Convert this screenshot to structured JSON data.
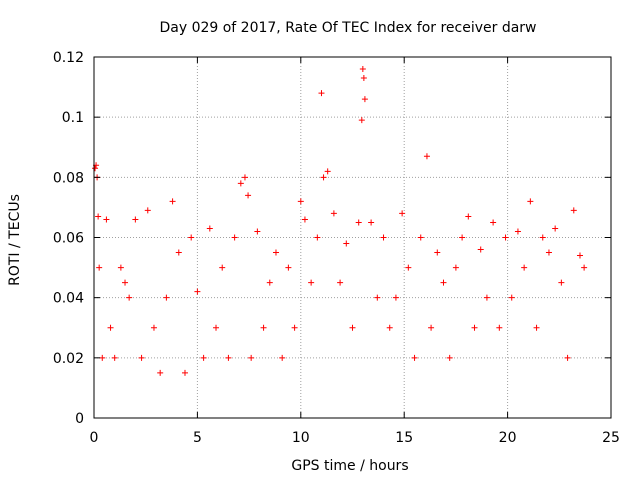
{
  "chart_data": {
    "type": "scatter",
    "title": "Day 029 of 2017, Rate Of TEC Index for receiver darw",
    "xlabel": "GPS time / hours",
    "ylabel": "ROTI / TECUs",
    "xlim": [
      0,
      25
    ],
    "ylim": [
      0,
      0.12
    ],
    "xticks": [
      0,
      5,
      10,
      15,
      20,
      25
    ],
    "xtick_labels": [
      "0",
      "5",
      "10",
      "15",
      "20",
      "25"
    ],
    "yticks": [
      0,
      0.02,
      0.04,
      0.06,
      0.08,
      0.1,
      0.12
    ],
    "ytick_labels": [
      "0",
      "0.02",
      "0.04",
      "0.06",
      "0.08",
      "0.1",
      "0.12"
    ],
    "grid": true,
    "legend": "none",
    "marker": "plus",
    "color": "#ff0000",
    "series": [
      {
        "x": [
          0.05,
          0.1,
          0.15,
          0.2,
          0.25,
          0.4,
          0.6,
          0.8,
          1.0,
          1.3,
          1.5,
          1.7,
          2.0,
          2.3,
          2.6,
          2.9,
          3.2,
          3.5,
          3.8,
          4.1,
          4.4,
          4.7,
          5.0,
          5.3,
          5.6,
          5.9,
          6.2,
          6.5,
          6.8,
          7.1,
          7.3,
          7.45,
          7.6,
          7.9,
          8.2,
          8.5,
          8.8,
          9.1,
          9.4,
          9.7,
          10.0,
          10.2,
          10.5,
          10.8,
          11.0,
          11.1,
          11.3,
          11.6,
          11.9,
          12.2,
          12.5,
          12.8,
          12.95,
          13.0,
          13.05,
          13.1,
          13.4,
          13.7,
          14.0,
          14.3,
          14.6,
          14.9,
          15.2,
          15.5,
          15.8,
          16.1,
          16.3,
          16.6,
          16.9,
          17.2,
          17.5,
          17.8,
          18.1,
          18.4,
          18.7,
          19.0,
          19.3,
          19.6,
          19.9,
          20.2,
          20.5,
          20.8,
          21.1,
          21.4,
          21.7,
          22.0,
          22.3,
          22.6,
          22.9,
          23.2,
          23.5,
          23.7
        ],
        "y": [
          0.083,
          0.084,
          0.08,
          0.067,
          0.05,
          0.02,
          0.066,
          0.03,
          0.02,
          0.05,
          0.045,
          0.04,
          0.066,
          0.02,
          0.069,
          0.03,
          0.015,
          0.04,
          0.072,
          0.055,
          0.015,
          0.06,
          0.042,
          0.02,
          0.063,
          0.03,
          0.05,
          0.02,
          0.06,
          0.078,
          0.08,
          0.074,
          0.02,
          0.062,
          0.03,
          0.045,
          0.055,
          0.02,
          0.05,
          0.03,
          0.072,
          0.066,
          0.045,
          0.06,
          0.108,
          0.08,
          0.082,
          0.068,
          0.045,
          0.058,
          0.03,
          0.065,
          0.099,
          0.116,
          0.113,
          0.106,
          0.065,
          0.04,
          0.06,
          0.03,
          0.04,
          0.068,
          0.05,
          0.02,
          0.06,
          0.087,
          0.03,
          0.055,
          0.045,
          0.02,
          0.05,
          0.06,
          0.067,
          0.03,
          0.056,
          0.04,
          0.065,
          0.03,
          0.06,
          0.04,
          0.062,
          0.05,
          0.072,
          0.03,
          0.06,
          0.055,
          0.063,
          0.045,
          0.02,
          0.069,
          0.054,
          0.05
        ]
      }
    ]
  }
}
